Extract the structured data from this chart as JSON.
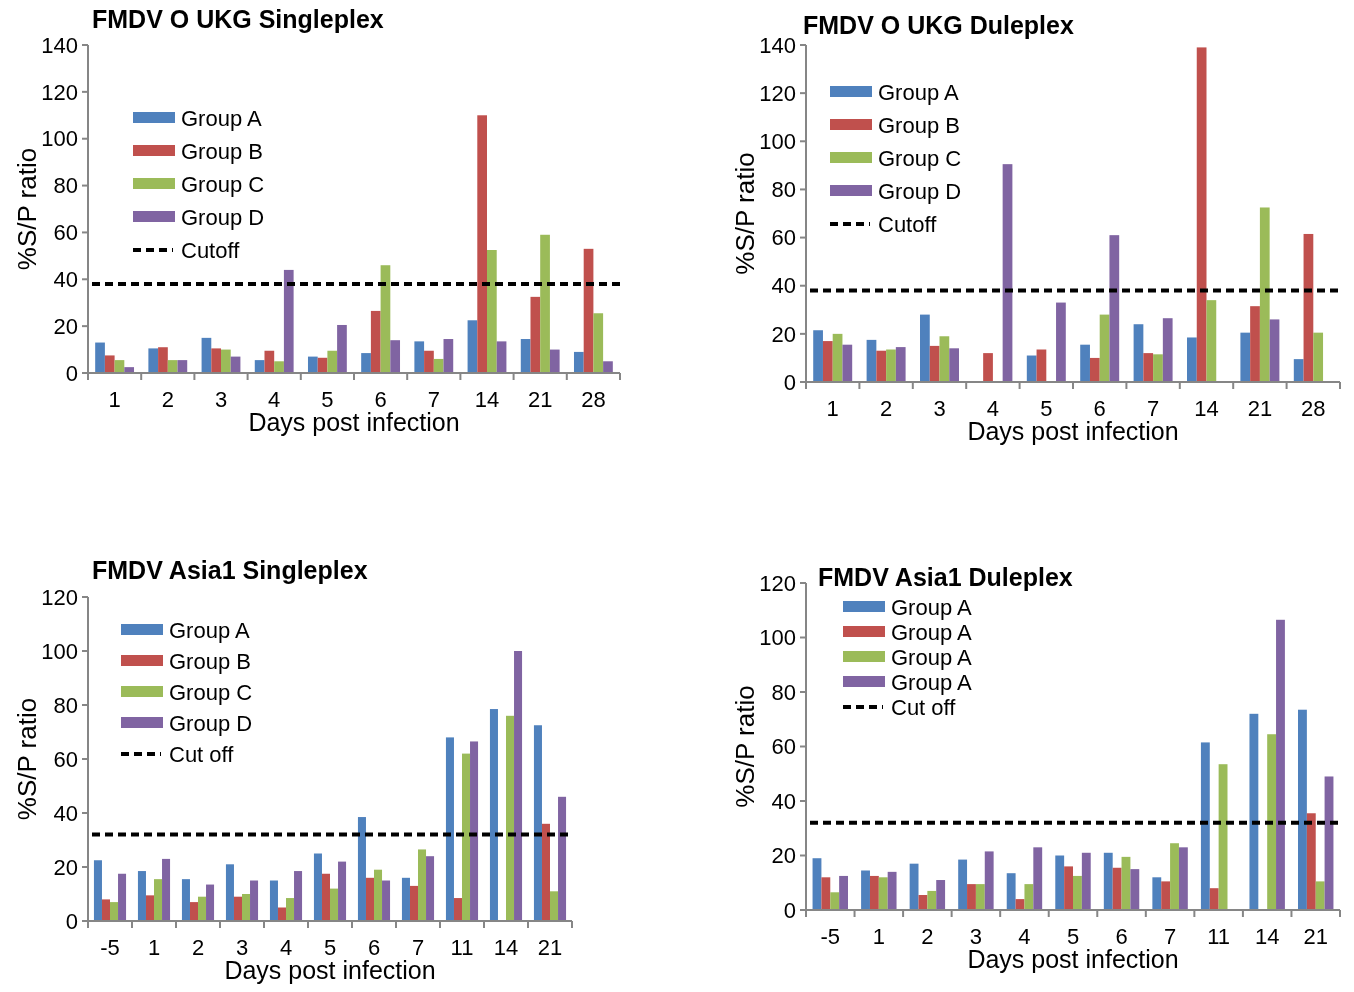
{
  "chart_data": [
    {
      "type": "bar",
      "title": "FMDV O UKG Singleplex",
      "xlabel": "Days post infection",
      "ylabel": "%S/P ratio",
      "categories": [
        "1",
        "2",
        "3",
        "4",
        "5",
        "6",
        "7",
        "14",
        "21",
        "28"
      ],
      "ylim": [
        0,
        140
      ],
      "yticks": [
        0,
        20,
        40,
        60,
        80,
        100,
        120,
        140
      ],
      "legend": "top left",
      "series": [
        {
          "name": "Group A",
          "color": "#4f81bd",
          "values": [
            13,
            10.5,
            15,
            5.5,
            7,
            8.5,
            13.5,
            22.5,
            14.5,
            9
          ]
        },
        {
          "name": "Group B",
          "color": "#c0504d",
          "values": [
            7.5,
            11,
            10.5,
            9.5,
            6.5,
            26.5,
            9.5,
            110,
            32.5,
            53
          ]
        },
        {
          "name": "Group C",
          "color": "#9bbb59",
          "values": [
            5.5,
            5.5,
            10,
            5,
            9.5,
            46,
            6,
            52.5,
            59,
            25.5
          ]
        },
        {
          "name": "Group D",
          "color": "#8064a2",
          "values": [
            2.5,
            5.5,
            7,
            44,
            20.5,
            14,
            14.5,
            13.5,
            10,
            5
          ]
        }
      ],
      "ref_lines": [
        {
          "axis": "y",
          "value": 38,
          "label": "Cutoff",
          "color": "#000000",
          "line_style": "dashed"
        }
      ]
    },
    {
      "type": "bar",
      "title": "FMDV O UKG Duleplex",
      "xlabel": "Days post infection",
      "ylabel": "%S/P ratio",
      "categories": [
        "1",
        "2",
        "3",
        "4",
        "5",
        "6",
        "7",
        "14",
        "21",
        "28"
      ],
      "ylim": [
        0,
        140
      ],
      "yticks": [
        0,
        20,
        40,
        60,
        80,
        100,
        120,
        140
      ],
      "legend": "top left",
      "series": [
        {
          "name": "Group A",
          "color": "#4f81bd",
          "values": [
            21.5,
            17.5,
            28,
            null,
            11,
            15.5,
            24,
            18.5,
            20.5,
            9.5
          ]
        },
        {
          "name": "Group B",
          "color": "#c0504d",
          "values": [
            17,
            13,
            15,
            12,
            13.5,
            10,
            12,
            139,
            31.5,
            61.5
          ]
        },
        {
          "name": "Group C",
          "color": "#9bbb59",
          "values": [
            20,
            13.5,
            19,
            null,
            null,
            28,
            11.5,
            34,
            72.5,
            20.5
          ]
        },
        {
          "name": "Group D",
          "color": "#8064a2",
          "values": [
            15.5,
            14.5,
            14,
            90.5,
            33,
            61,
            26.5,
            null,
            26,
            null
          ]
        }
      ],
      "ref_lines": [
        {
          "axis": "y",
          "value": 38,
          "label": "Cutoff",
          "color": "#000000",
          "line_style": "dashed"
        }
      ]
    },
    {
      "type": "bar",
      "title": "FMDV Asia1 Singleplex",
      "xlabel": "Days post infection",
      "ylabel": "%S/P ratio",
      "categories": [
        "-5",
        "1",
        "2",
        "3",
        "4",
        "5",
        "6",
        "7",
        "11",
        "14",
        "21"
      ],
      "ylim": [
        0,
        120
      ],
      "yticks": [
        0,
        20,
        40,
        60,
        80,
        100,
        120
      ],
      "legend": "top left",
      "series": [
        {
          "name": "Group A",
          "color": "#4f81bd",
          "values": [
            22.5,
            18.5,
            15.5,
            21,
            15,
            25,
            38.5,
            16,
            68,
            78.5,
            72.5
          ]
        },
        {
          "name": "Group B",
          "color": "#c0504d",
          "values": [
            8,
            9.5,
            7,
            9,
            5,
            17.5,
            16,
            13,
            8.5,
            null,
            36
          ]
        },
        {
          "name": "Group C",
          "color": "#9bbb59",
          "values": [
            7,
            15.5,
            9,
            10,
            8.5,
            12,
            19,
            26.5,
            62,
            76,
            11
          ]
        },
        {
          "name": "Group D",
          "color": "#8064a2",
          "values": [
            17.5,
            23,
            13.5,
            15,
            18.5,
            22,
            15,
            24,
            66.5,
            100,
            46
          ]
        }
      ],
      "ref_lines": [
        {
          "axis": "y",
          "value": 32,
          "label": "Cut off",
          "color": "#000000",
          "line_style": "dashed"
        }
      ]
    },
    {
      "type": "bar",
      "title": "FMDV Asia1 Duleplex",
      "xlabel": "Days post infection",
      "ylabel": "%S/P ratio",
      "categories": [
        "-5",
        "1",
        "2",
        "3",
        "4",
        "5",
        "6",
        "7",
        "11",
        "14",
        "21"
      ],
      "ylim": [
        0,
        120
      ],
      "yticks": [
        0,
        20,
        40,
        60,
        80,
        100,
        120
      ],
      "legend": "top left",
      "series": [
        {
          "name": "Group A",
          "color": "#4f81bd",
          "values": [
            19,
            14.5,
            17,
            18.5,
            13.5,
            20,
            21,
            12,
            61.5,
            72,
            73.5
          ]
        },
        {
          "name": "Group A",
          "color": "#c0504d",
          "values": [
            12,
            12.5,
            5.5,
            9.5,
            4,
            16,
            15.5,
            10.5,
            8,
            null,
            35.5
          ]
        },
        {
          "name": "Group A",
          "color": "#9bbb59",
          "values": [
            6.5,
            12,
            7,
            9.5,
            9.5,
            12.5,
            19.5,
            24.5,
            53.5,
            64.5,
            10.5
          ]
        },
        {
          "name": "Group A",
          "color": "#8064a2",
          "values": [
            12.5,
            14,
            11,
            21.5,
            23,
            21,
            15,
            23,
            null,
            106.5,
            49
          ]
        }
      ],
      "ref_lines": [
        {
          "axis": "y",
          "value": 32,
          "label": "Cut off",
          "color": "#000000",
          "line_style": "dashed"
        }
      ]
    }
  ]
}
